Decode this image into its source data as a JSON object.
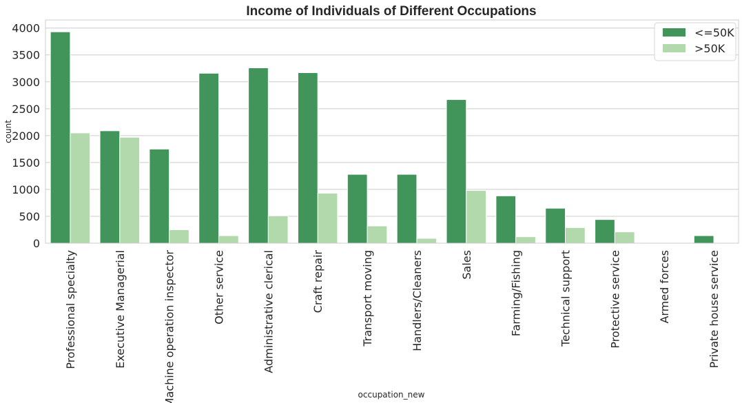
{
  "chart_data": {
    "type": "bar",
    "title": "Income of Individuals of Different Occupations",
    "xlabel": "occupation_new",
    "ylabel": "count",
    "ylim": [
      0,
      4150
    ],
    "yticks": [
      0,
      500,
      1000,
      1500,
      2000,
      2500,
      3000,
      3500,
      4000
    ],
    "grid": "horizontal",
    "legend_position": "top-right",
    "categories": [
      "Professional specialty",
      "Executive Managerial",
      "Machine operation inspector",
      "Other service",
      "Administrative clerical",
      "Craft repair",
      "Transport moving",
      "Handlers/Cleaners",
      "Sales",
      "Farming/Fishing",
      "Technical support",
      "Protective service",
      "Armed forces",
      "Private house service"
    ],
    "series": [
      {
        "name": "<=50K",
        "color": "#41955b",
        "values": [
          3930,
          2090,
          1750,
          3160,
          3260,
          3170,
          1280,
          1280,
          2670,
          880,
          650,
          440,
          8,
          140
        ]
      },
      {
        "name": ">50K",
        "color": "#b2d9ab",
        "values": [
          2050,
          1970,
          250,
          140,
          510,
          930,
          320,
          90,
          980,
          120,
          290,
          210,
          1,
          1
        ]
      }
    ]
  }
}
